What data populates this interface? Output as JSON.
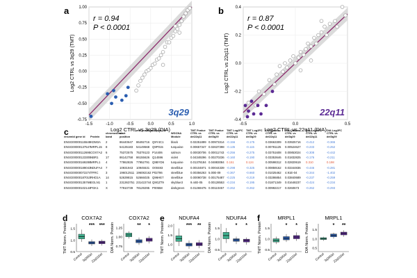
{
  "panel_labels": [
    "a",
    "b",
    "c",
    "d",
    "e",
    "f"
  ],
  "colors": {
    "grey": "#a8a8a8",
    "blue": "#2a5db0",
    "purple": "#5b2a94",
    "line": "#8b2a6b",
    "band": "#cfcfcf",
    "green": "#3fb08f",
    "neg": "#4a7fd8",
    "pos": "#e05a3a"
  },
  "chart_data": [
    {
      "panel": "a",
      "type": "scatter",
      "stat_r": "r = 0.94",
      "stat_p": "P < 0.0001",
      "xlabel": "Log2 CTRL vs 3q29 (DIA)",
      "ylabel": "Log2 CTRL vs 3q29 (TMT)",
      "xlim": [
        -1.5,
        1.0
      ],
      "ylim": [
        -0.75,
        1.0
      ],
      "xticks": [
        "-1.5",
        "-1.0",
        "-0.5",
        "0.0",
        "0.5",
        "1.0"
      ],
      "yticks": [
        "-0.75",
        "-0.50",
        "-0.25",
        "0.00",
        "0.25",
        "0.50",
        "0.75",
        "1.00"
      ],
      "tag": "3q29",
      "fit": [
        [
          -1.5,
          -0.68
        ],
        [
          1.0,
          1.0
        ]
      ],
      "grey_points": [
        [
          -0.35,
          -0.3
        ],
        [
          -0.3,
          -0.22
        ],
        [
          -0.25,
          -0.15
        ],
        [
          -0.2,
          -0.1
        ],
        [
          -0.15,
          -0.05
        ],
        [
          -0.1,
          0.0
        ],
        [
          -0.05,
          0.02
        ],
        [
          0.0,
          0.05
        ],
        [
          0.05,
          0.1
        ],
        [
          0.1,
          0.12
        ],
        [
          0.15,
          0.18
        ],
        [
          0.2,
          0.2
        ],
        [
          0.25,
          0.25
        ],
        [
          0.3,
          0.3
        ],
        [
          0.35,
          0.38
        ],
        [
          0.4,
          0.45
        ],
        [
          0.45,
          0.45
        ],
        [
          0.5,
          0.52
        ],
        [
          0.55,
          0.55
        ],
        [
          0.6,
          0.62
        ],
        [
          0.65,
          0.66
        ],
        [
          0.7,
          0.72
        ],
        [
          0.75,
          0.78
        ],
        [
          0.8,
          0.85
        ],
        [
          0.85,
          0.9
        ],
        [
          0.9,
          0.95
        ],
        [
          0.95,
          0.98
        ],
        [
          0.6,
          0.7
        ],
        [
          0.7,
          0.6
        ],
        [
          0.3,
          0.1
        ]
      ],
      "highlight_points": [
        [
          -1.45,
          -0.7
        ],
        [
          -1.05,
          -0.35
        ],
        [
          -0.95,
          -0.5
        ],
        [
          -0.9,
          -0.3
        ],
        [
          -0.85,
          -0.4
        ],
        [
          -0.7,
          -0.45
        ],
        [
          -0.6,
          -0.38
        ],
        [
          -0.55,
          -0.25
        ]
      ]
    },
    {
      "panel": "b",
      "type": "scatter",
      "stat_r": "r = 0.87",
      "stat_p": "P < 0.0001",
      "xlabel": "Log2 CTRL vs 22q11 (DIA)",
      "ylabel": "Log2 CTRL vs 22q11 (TMT)",
      "xlim": [
        -0.5,
        0.5
      ],
      "ylim": [
        -0.4,
        0.4
      ],
      "xticks": [
        "-0.5",
        "0.0",
        "0.5"
      ],
      "yticks": [
        "-0.4",
        "-0.2",
        "0.0",
        "0.2",
        "0.4"
      ],
      "tag": "22q11",
      "fit": [
        [
          -0.5,
          -0.35
        ],
        [
          0.5,
          0.35
        ]
      ],
      "grey_points": [
        [
          -0.45,
          -0.28
        ],
        [
          -0.38,
          -0.3
        ],
        [
          -0.35,
          -0.2
        ],
        [
          -0.3,
          -0.22
        ],
        [
          -0.25,
          -0.12
        ],
        [
          -0.2,
          -0.15
        ],
        [
          -0.18,
          -0.08
        ],
        [
          -0.15,
          -0.02
        ],
        [
          -0.12,
          -0.06
        ],
        [
          -0.1,
          0.0
        ],
        [
          -0.08,
          -0.03
        ],
        [
          -0.05,
          0.02
        ],
        [
          -0.02,
          0.05
        ],
        [
          0.0,
          0.0
        ],
        [
          0.03,
          0.04
        ],
        [
          0.05,
          0.08
        ],
        [
          0.08,
          0.06
        ],
        [
          0.1,
          0.1
        ],
        [
          0.12,
          0.14
        ],
        [
          0.15,
          0.12
        ],
        [
          0.18,
          0.18
        ],
        [
          0.2,
          0.14
        ],
        [
          0.22,
          0.2
        ],
        [
          0.25,
          0.22
        ],
        [
          0.28,
          0.26
        ],
        [
          0.3,
          0.2
        ],
        [
          0.33,
          0.28
        ],
        [
          0.38,
          0.3
        ],
        [
          0.4,
          0.26
        ],
        [
          0.45,
          0.4
        ],
        [
          0.48,
          0.34
        ],
        [
          0.15,
          0.02
        ],
        [
          0.05,
          -0.05
        ],
        [
          0.25,
          0.3
        ]
      ],
      "highlight_points": [
        [
          -0.48,
          -0.3
        ],
        [
          -0.45,
          -0.34
        ],
        [
          -0.42,
          -0.27
        ],
        [
          -0.4,
          -0.36
        ],
        [
          -0.36,
          -0.3
        ],
        [
          -0.33,
          -0.36
        ],
        [
          -0.28,
          -0.3
        ],
        [
          -0.22,
          -0.2
        ],
        [
          -0.46,
          -0.38
        ]
      ]
    },
    {
      "panel": "d",
      "type": "box",
      "groups": [
        "Control",
        "3q29Del",
        "22q11Del"
      ],
      "plots": [
        {
          "title": "COX7A2",
          "ylabel": "TMT Norm. Protein",
          "yticks": [
            "1.5",
            "1.0",
            "0.5"
          ],
          "ylim": [
            0.5,
            1.7
          ],
          "sig": [
            "",
            "***",
            "***"
          ],
          "boxes": [
            {
              "q1": 1.05,
              "median": 1.15,
              "q3": 1.25,
              "min": 0.92,
              "max": 1.45
            },
            {
              "q1": 0.83,
              "median": 0.88,
              "q3": 0.93,
              "min": 0.74,
              "max": 1.02
            },
            {
              "q1": 0.84,
              "median": 0.9,
              "q3": 0.95,
              "min": 0.76,
              "max": 1.02
            }
          ]
        },
        {
          "title": "COX7A2",
          "ylabel": "DIA Norm. Protein",
          "yticks": [
            "1.25",
            "1.00",
            "0.75"
          ],
          "ylim": [
            0.6,
            1.35
          ],
          "sig": [
            "",
            "**",
            "*"
          ],
          "boxes": [
            {
              "q1": 1.0,
              "median": 1.05,
              "q3": 1.1,
              "min": 0.95,
              "max": 1.15
            },
            {
              "q1": 0.84,
              "median": 0.88,
              "q3": 0.92,
              "min": 0.78,
              "max": 0.98
            },
            {
              "q1": 0.88,
              "median": 0.92,
              "q3": 0.96,
              "min": 0.82,
              "max": 1.02
            }
          ]
        }
      ]
    },
    {
      "panel": "e",
      "type": "box",
      "groups": [
        "Control",
        "3q29Del",
        "22q11Del"
      ],
      "plots": [
        {
          "title": "NDUFA4",
          "ylabel": "TMT Norm. Protein",
          "yticks": [
            "2.0",
            "1.5",
            "1.0"
          ],
          "ylim": [
            0.6,
            2.1
          ],
          "sig": [
            "",
            "***",
            "**"
          ],
          "boxes": [
            {
              "q1": 1.15,
              "median": 1.3,
              "q3": 1.45,
              "min": 0.9,
              "max": 1.85
            },
            {
              "q1": 0.9,
              "median": 0.98,
              "q3": 1.05,
              "min": 0.75,
              "max": 1.2
            },
            {
              "q1": 0.92,
              "median": 1.0,
              "q3": 1.08,
              "min": 0.78,
              "max": 1.22
            }
          ]
        },
        {
          "title": "NDUFA4",
          "ylabel": "DIA Norm. Protein",
          "yticks": [
            "1.5",
            "1.0",
            "0.5"
          ],
          "ylim": [
            0.4,
            1.7
          ],
          "sig": [
            "",
            "*",
            "*"
          ],
          "boxes": [
            {
              "q1": 1.0,
              "median": 1.15,
              "q3": 1.3,
              "min": 0.8,
              "max": 1.5
            },
            {
              "q1": 0.88,
              "median": 0.95,
              "q3": 1.0,
              "min": 0.75,
              "max": 1.1
            },
            {
              "q1": 0.85,
              "median": 0.92,
              "q3": 0.98,
              "min": 0.72,
              "max": 1.06
            }
          ]
        }
      ]
    },
    {
      "panel": "f",
      "type": "box",
      "groups": [
        "Control",
        "3q29Del",
        "22q11Del"
      ],
      "plots": [
        {
          "title": "MRPL1",
          "ylabel": "TMT Norm. Protein",
          "yticks": [
            "1.5",
            "1.0",
            "0.5"
          ],
          "ylim": [
            0.4,
            1.7
          ],
          "sig": [
            "",
            "*",
            "*"
          ],
          "boxes": [
            {
              "q1": 0.85,
              "median": 0.92,
              "q3": 1.0,
              "min": 0.75,
              "max": 1.1
            },
            {
              "q1": 0.95,
              "median": 1.02,
              "q3": 1.1,
              "min": 0.85,
              "max": 1.22
            },
            {
              "q1": 1.0,
              "median": 1.08,
              "q3": 1.15,
              "min": 0.9,
              "max": 1.3
            }
          ]
        },
        {
          "title": "MRPL1",
          "ylabel": "DIA Norm. Protein",
          "yticks": [
            "1.5",
            "1.0",
            "0.5"
          ],
          "ylim": [
            0.3,
            1.8
          ],
          "sig": [
            "",
            "*",
            "**"
          ],
          "boxes": [
            {
              "q1": 0.95,
              "median": 1.0,
              "q3": 1.05,
              "min": 0.88,
              "max": 1.1
            },
            {
              "q1": 1.1,
              "median": 1.18,
              "q3": 1.25,
              "min": 1.0,
              "max": 1.32
            },
            {
              "q1": 1.2,
              "median": 1.28,
              "q3": 1.35,
              "min": 1.1,
              "max": 1.45
            }
          ]
        }
      ]
    },
    {
      "panel": "c",
      "type": "table",
      "headers": [
        "ensembl gene id",
        "Protein",
        "chromosome\nband",
        "start\nposition",
        "end position",
        "uniprot_id",
        "WGCNA\nModule",
        "TMT Pvalue\nCTRL vs\ndel22q11",
        "TMT Pvalue\nCTRL vs\ndel3q29",
        "TMT Log2FC\nCTRL vs\ndel22q11",
        "TMT Log2FC\nCTRL vs\ndel3q29",
        "DIA Qvalue\nCTRL vs\ndel22q11",
        "DIA Qvalue\nCTRL vs\ndel3q29",
        "DIA Log2FC\nCTRL vs\ndel22q11",
        "DIA Log2FC\nCTRL vs\ndel3q29"
      ],
      "rows": [
        [
          "ENSG00000115548",
          "KDM3A",
          "2",
          "86440647",
          "86492716",
          "Q9Y4C1",
          "black",
          "0.02251899",
          "0.00973314",
          "-0.156",
          "-0.175",
          "0.03663309",
          "0.03925716",
          "-0.412",
          "-0.365"
        ],
        [
          "ENSG00000137547",
          "MRPL15",
          "8",
          "54135183",
          "54149568",
          "Q9P015",
          "turquoise",
          "0.00657347",
          "0.02637398",
          "-0.135",
          "-0.115",
          "0.00781125",
          "0.00524627",
          "-0.233",
          "-0.252"
        ],
        [
          "ENSG00000112695",
          "COX7A2",
          "6",
          "75372575",
          "75379123",
          "P14406",
          "salmon",
          "0.00030706",
          "0.00011743",
          "-0.256",
          "-0.275",
          "0.03751608",
          "0.00853024",
          "-0.308",
          "-0.442"
        ],
        [
          "ENSG00000123305",
          "NBR1",
          "17",
          "86142758",
          "86155626",
          "Q14596",
          "violet",
          "0.04349296",
          "0.00270236",
          "-0.160",
          "-0.190",
          "0.03353646",
          "0.01832825",
          "-0.176",
          "-0.211"
        ],
        [
          "ENSG00000169288",
          "MRPL1",
          "4",
          "77862826",
          "77952791",
          "Q9BYD6",
          "turquoise",
          "0.01378184",
          "0.04883084",
          "0.151",
          "0.124",
          "0.00598312",
          "0.02820619",
          "0.310",
          "0.198"
        ],
        [
          "ENSG00000189043",
          "NDUFA4",
          "7",
          "10931943",
          "10945531",
          "O00483",
          "steelblue",
          "0.00104871",
          "0.00044339",
          "-0.298",
          "-0.325",
          "0.00859162",
          "0.03344836",
          "-0.446",
          "-0.281"
        ],
        [
          "ENSG00000072274",
          "TFRC",
          "3",
          "196012511",
          "196082162",
          "P02786",
          "steelblue",
          "0.00356263",
          "5.00E-09",
          "-0.367",
          "-0.660",
          "0.01025462",
          "4.91E-04",
          "-0.344",
          "-1.402"
        ],
        [
          "ENSG00000187010",
          "RHD1A",
          "14",
          "52639815",
          "52666025",
          "Q96HE7",
          "steelblue",
          "0.00090738",
          "0.00175487",
          "-0.225",
          "-0.219",
          "0.03286854",
          "0.03840689",
          "-0.237",
          "-0.259"
        ],
        [
          "ENSG00000135766",
          "EGLN1",
          "1",
          "231363751",
          "231422744",
          "Q9GZT9",
          "skyblue3",
          "9.44E-05",
          "0.00128553",
          "-0.234",
          "-0.195",
          "0.01871349",
          "0.01648237",
          "-0.424",
          "-0.234"
        ],
        [
          "ENSG00000102144",
          "PGK1",
          "X",
          "77910739",
          "78129295",
          "P00558",
          "darkgreen",
          "0.01269475",
          "0.00110457",
          "-0.262",
          "-0.262",
          "0.00992217",
          "0.0260673",
          "-0.262",
          "-0.293"
        ]
      ]
    }
  ]
}
